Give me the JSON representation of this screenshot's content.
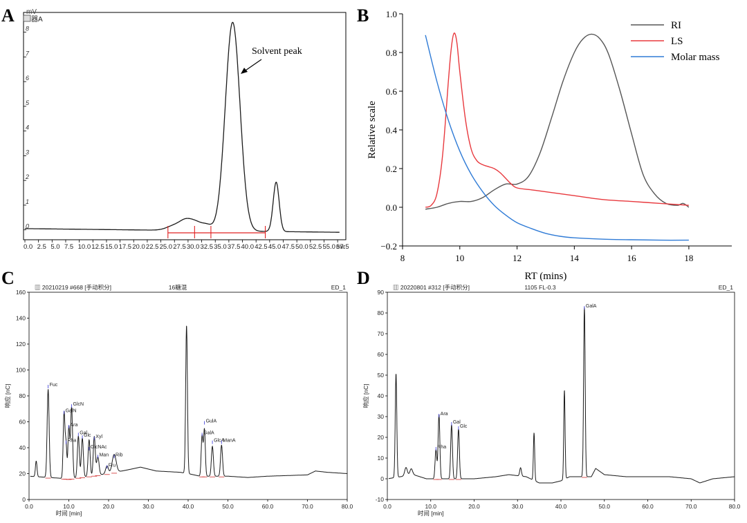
{
  "figure": {
    "panel_labels": [
      "A",
      "B",
      "C",
      "D"
    ]
  },
  "chart_data": [
    {
      "panel": "A",
      "type": "line",
      "ylabel": "mV",
      "legend_text": "器A",
      "xlim": [
        0,
        58.5
      ],
      "ylim": [
        -0.4,
        8.8
      ],
      "x_ticks": [
        "0.0",
        "2.5",
        "5.0",
        "7.5",
        "10.0",
        "12.5",
        "15.0",
        "17.5",
        "20.0",
        "22.5",
        "25.0",
        "27.5",
        "30.0",
        "32.5",
        "35.0",
        "37.5",
        "40.0",
        "42.5",
        "45.0",
        "47.5",
        "50.0",
        "52.5",
        "55.0",
        "57.5"
      ],
      "x_tick_values": [
        0,
        2.5,
        5,
        7.5,
        10,
        12.5,
        15,
        17.5,
        20,
        22.5,
        25,
        27.5,
        30,
        32.5,
        35,
        37.5,
        40,
        42.5,
        45,
        47.5,
        50,
        52.5,
        55,
        57.5
      ],
      "x_unit_suffix": "mir",
      "y_ticks": [
        "0",
        "1",
        "2",
        "3",
        "4",
        "5",
        "6",
        "7",
        "8"
      ],
      "y_tick_values": [
        0,
        1,
        2,
        3,
        4,
        5,
        6,
        7,
        8
      ],
      "annotation": "Solvent peak",
      "trace": {
        "baseline_start": 0.05,
        "baseline_end": -0.1,
        "peaks": [
          {
            "center": 27.8,
            "height": 0.22,
            "width": 1.5
          },
          {
            "center": 29.5,
            "height": 0.25,
            "width": 1.0
          },
          {
            "center": 31.3,
            "height": 0.35,
            "width": 1.2
          },
          {
            "center": 33.5,
            "height": 0.2,
            "width": 0.9
          },
          {
            "center": 38.2,
            "height": 8.45,
            "width": 1.35
          },
          {
            "center": 46.2,
            "height": 2.0,
            "width": 0.55
          }
        ]
      },
      "integration_markers_x": [
        26.3,
        31.2,
        34.2,
        44.2
      ]
    },
    {
      "panel": "B",
      "type": "line",
      "xlabel": "RT (mins)",
      "ylabel": "Relative scale",
      "xlim": [
        8,
        19.5
      ],
      "ylim": [
        -0.2,
        1.0
      ],
      "x_ticks": [
        "8",
        "10",
        "12",
        "14",
        "16",
        "18"
      ],
      "x_tick_values": [
        8,
        10,
        12,
        14,
        16,
        18
      ],
      "y_ticks": [
        "−0.2",
        "0.0",
        "0.2",
        "0.4",
        "0.6",
        "0.8",
        "1.0"
      ],
      "y_tick_values": [
        -0.2,
        0,
        0.2,
        0.4,
        0.6,
        0.8,
        1.0
      ],
      "legend_position": "top-right",
      "series": [
        {
          "name": "RI",
          "color": "#555555",
          "x": [
            8.8,
            9.2,
            9.6,
            10.0,
            10.4,
            10.8,
            11.2,
            11.6,
            12.0,
            12.4,
            12.8,
            13.2,
            13.6,
            14.0,
            14.3,
            14.6,
            14.9,
            15.2,
            15.6,
            16.0,
            16.4,
            16.8,
            17.2,
            17.6,
            17.8,
            18.0
          ],
          "y": [
            -0.01,
            0.0,
            0.02,
            0.03,
            0.03,
            0.05,
            0.09,
            0.12,
            0.12,
            0.16,
            0.28,
            0.46,
            0.65,
            0.8,
            0.87,
            0.895,
            0.87,
            0.79,
            0.6,
            0.38,
            0.17,
            0.07,
            0.02,
            0.01,
            0.02,
            0.0
          ]
        },
        {
          "name": "LS",
          "color": "#e8383d",
          "x": [
            8.8,
            9.0,
            9.2,
            9.4,
            9.6,
            9.7,
            9.8,
            9.9,
            10.0,
            10.2,
            10.4,
            10.6,
            10.8,
            11.0,
            11.2,
            11.4,
            11.6,
            11.8,
            12.0,
            12.5,
            13.0,
            14.0,
            15.0,
            16.0,
            17.0,
            18.0
          ],
          "y": [
            0.0,
            0.01,
            0.07,
            0.27,
            0.65,
            0.82,
            0.9,
            0.85,
            0.7,
            0.45,
            0.3,
            0.24,
            0.22,
            0.21,
            0.2,
            0.18,
            0.15,
            0.12,
            0.1,
            0.09,
            0.08,
            0.06,
            0.04,
            0.03,
            0.02,
            0.01
          ]
        },
        {
          "name": "Molar mass",
          "color": "#2f7bd6",
          "x": [
            8.8,
            9.2,
            9.6,
            10.0,
            10.4,
            10.8,
            11.2,
            11.6,
            12.0,
            12.5,
            13.0,
            13.5,
            14.0,
            15.0,
            16.0,
            17.0,
            18.0
          ],
          "y": [
            0.89,
            0.65,
            0.45,
            0.29,
            0.17,
            0.08,
            0.01,
            -0.04,
            -0.08,
            -0.11,
            -0.135,
            -0.15,
            -0.158,
            -0.165,
            -0.168,
            -0.17,
            -0.17
          ]
        }
      ]
    },
    {
      "panel": "C",
      "type": "line",
      "header": "20210219 #668 [手动积分]",
      "header_center": "16糖混",
      "header_right": "ED_1",
      "xlabel": "时间 [min]",
      "ylabel": "响应 [nC]",
      "xlim": [
        0,
        80
      ],
      "ylim": [
        0,
        160
      ],
      "x_ticks": [
        "0.0",
        "10.0",
        "20.0",
        "30.0",
        "40.0",
        "50.0",
        "60.0",
        "70.0",
        "80.0"
      ],
      "x_tick_values": [
        0,
        10,
        20,
        30,
        40,
        50,
        60,
        70,
        80
      ],
      "y_ticks": [
        "0",
        "20",
        "40",
        "60",
        "80",
        "100",
        "120",
        "140",
        "160"
      ],
      "y_tick_values": [
        0,
        20,
        40,
        60,
        80,
        100,
        120,
        140,
        160
      ],
      "trace": {
        "baseline_points": [
          [
            0,
            18
          ],
          [
            5,
            17
          ],
          [
            10,
            16
          ],
          [
            20,
            20
          ],
          [
            25,
            23
          ],
          [
            28,
            25
          ],
          [
            32,
            22
          ],
          [
            38,
            21
          ],
          [
            40,
            20
          ],
          [
            43,
            18
          ],
          [
            50,
            18
          ],
          [
            55,
            17
          ],
          [
            60,
            18
          ],
          [
            70,
            19
          ],
          [
            72,
            22
          ],
          [
            75,
            21
          ],
          [
            80,
            20
          ]
        ],
        "peaks": [
          {
            "center": 1.8,
            "height": 12,
            "width": 0.2
          },
          {
            "center": 4.8,
            "height": 68,
            "width": 0.25
          },
          {
            "center": 8.8,
            "height": 51,
            "width": 0.22
          },
          {
            "center": 9.3,
            "height": 26,
            "width": 0.2
          },
          {
            "center": 10.0,
            "height": 40,
            "width": 0.22
          },
          {
            "center": 10.7,
            "height": 55,
            "width": 0.25
          },
          {
            "center": 12.4,
            "height": 32,
            "width": 0.25
          },
          {
            "center": 13.4,
            "height": 30,
            "width": 0.25
          },
          {
            "center": 15.1,
            "height": 28,
            "width": 0.25
          },
          {
            "center": 16.4,
            "height": 30,
            "width": 0.25
          },
          {
            "center": 17.3,
            "height": 14,
            "width": 0.3
          },
          {
            "center": 19.6,
            "height": 6,
            "width": 0.35
          },
          {
            "center": 21.4,
            "height": 14,
            "width": 0.5
          },
          {
            "center": 39.6,
            "height": 114,
            "width": 0.22
          },
          {
            "center": 43.5,
            "height": 31,
            "width": 0.22
          },
          {
            "center": 44.1,
            "height": 36,
            "width": 0.22
          },
          {
            "center": 46.1,
            "height": 23,
            "width": 0.25
          },
          {
            "center": 48.4,
            "height": 24,
            "width": 0.25
          }
        ]
      },
      "peak_labels": [
        {
          "text": "Fuc",
          "x": 4.8,
          "y": 88
        },
        {
          "text": "GalN",
          "x": 8.8,
          "y": 68
        },
        {
          "text": "Rha",
          "x": 9.3,
          "y": 45
        },
        {
          "text": "Ara",
          "x": 10.0,
          "y": 57
        },
        {
          "text": "GlcN",
          "x": 10.7,
          "y": 73
        },
        {
          "text": "Gal",
          "x": 12.4,
          "y": 51
        },
        {
          "text": "Glc",
          "x": 13.4,
          "y": 49
        },
        {
          "text": "GlcNAc",
          "x": 15.1,
          "y": 40
        },
        {
          "text": "Xyl",
          "x": 16.4,
          "y": 48
        },
        {
          "text": "Man",
          "x": 17.3,
          "y": 34
        },
        {
          "text": "Fru",
          "x": 19.6,
          "y": 26
        },
        {
          "text": "Rib",
          "x": 21.4,
          "y": 34
        },
        {
          "text": "GulA",
          "x": 44.1,
          "y": 60
        },
        {
          "text": "GalA",
          "x": 43.5,
          "y": 51
        },
        {
          "text": "GlcA",
          "x": 46.1,
          "y": 45
        },
        {
          "text": "ManA",
          "x": 48.4,
          "y": 45
        }
      ]
    },
    {
      "panel": "D",
      "type": "line",
      "header": "20220801 #312 [手动积分]",
      "header_center": "1105 FL-0.3",
      "header_right": "ED_1",
      "xlabel": "时间 [min]",
      "ylabel": "响应 [nC]",
      "xlim": [
        0,
        80
      ],
      "ylim": [
        -10,
        90
      ],
      "x_ticks": [
        "0.0",
        "10.0",
        "20.0",
        "30.0",
        "40.0",
        "50.0",
        "60.0",
        "70.0",
        "80.0"
      ],
      "x_tick_values": [
        0,
        10,
        20,
        30,
        40,
        50,
        60,
        70,
        80
      ],
      "y_ticks": [
        "-10",
        "0",
        "10",
        "20",
        "30",
        "40",
        "50",
        "60",
        "70",
        "80",
        "90"
      ],
      "y_tick_values": [
        -10,
        0,
        10,
        20,
        30,
        40,
        50,
        60,
        70,
        80,
        90
      ],
      "trace": {
        "baseline_points": [
          [
            0,
            0
          ],
          [
            3,
            1
          ],
          [
            6,
            2
          ],
          [
            9,
            0
          ],
          [
            12,
            0
          ],
          [
            20,
            0
          ],
          [
            25,
            1
          ],
          [
            28,
            2
          ],
          [
            32,
            1
          ],
          [
            35,
            -2
          ],
          [
            38,
            -2
          ],
          [
            40,
            -1
          ],
          [
            42,
            1
          ],
          [
            47,
            1
          ],
          [
            48,
            5
          ],
          [
            50,
            2
          ],
          [
            55,
            1
          ],
          [
            60,
            1
          ],
          [
            65,
            1
          ],
          [
            70,
            0
          ],
          [
            72,
            -2
          ],
          [
            75,
            0
          ],
          [
            80,
            1
          ]
        ],
        "peaks": [
          {
            "center": 2.0,
            "height": 50,
            "width": 0.18
          },
          {
            "center": 4.3,
            "height": 4,
            "width": 0.3
          },
          {
            "center": 5.5,
            "height": 3,
            "width": 0.3
          },
          {
            "center": 11.2,
            "height": 14,
            "width": 0.2
          },
          {
            "center": 11.9,
            "height": 31,
            "width": 0.2
          },
          {
            "center": 14.8,
            "height": 26,
            "width": 0.2
          },
          {
            "center": 16.4,
            "height": 24,
            "width": 0.2
          },
          {
            "center": 30.7,
            "height": 4,
            "width": 0.2
          },
          {
            "center": 33.8,
            "height": 23,
            "width": 0.15
          },
          {
            "center": 40.8,
            "height": 43,
            "width": 0.15
          },
          {
            "center": 45.4,
            "height": 82,
            "width": 0.18
          }
        ]
      },
      "peak_labels": [
        {
          "text": "Ara",
          "x": 11.9,
          "y": 31
        },
        {
          "text": "Rha",
          "x": 11.2,
          "y": 15
        },
        {
          "text": "Gal",
          "x": 14.8,
          "y": 27
        },
        {
          "text": "Glc",
          "x": 16.4,
          "y": 25
        },
        {
          "text": "GalA",
          "x": 45.4,
          "y": 83
        }
      ]
    }
  ]
}
